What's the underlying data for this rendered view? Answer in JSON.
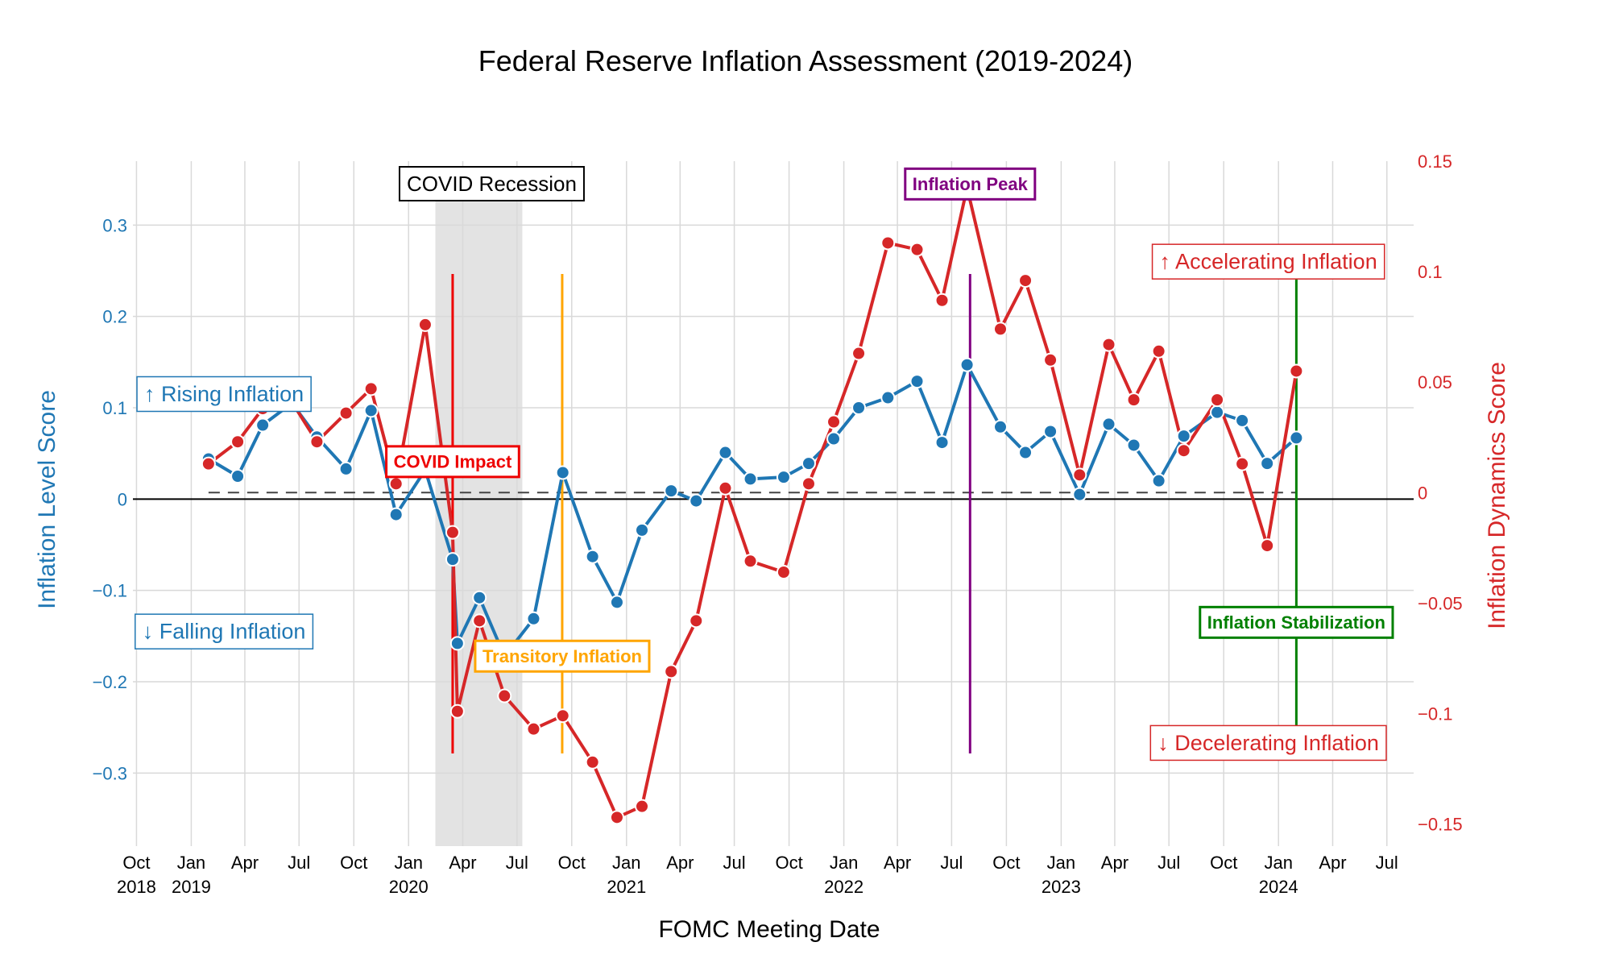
{
  "chart_data": {
    "type": "line",
    "title": "Federal Reserve Inflation Assessment (2019-2024)",
    "xlabel": "FOMC Meeting Date",
    "ylabel_left": "Inflation Level Score",
    "ylabel_right": "Inflation Dynamics Score",
    "xlim": [
      "2018-09-25",
      "2024-08-15"
    ],
    "ylim_left": [
      -0.38,
      0.37
    ],
    "ylim_right": [
      -0.16,
      0.15
    ],
    "x_ticks": [
      {
        "date": "2018-10-01",
        "month": "Oct",
        "year": "2018"
      },
      {
        "date": "2019-01-01",
        "month": "Jan",
        "year": "2019"
      },
      {
        "date": "2019-04-01",
        "month": "Apr",
        "year": ""
      },
      {
        "date": "2019-07-01",
        "month": "Jul",
        "year": ""
      },
      {
        "date": "2019-10-01",
        "month": "Oct",
        "year": ""
      },
      {
        "date": "2020-01-01",
        "month": "Jan",
        "year": "2020"
      },
      {
        "date": "2020-04-01",
        "month": "Apr",
        "year": ""
      },
      {
        "date": "2020-07-01",
        "month": "Jul",
        "year": ""
      },
      {
        "date": "2020-10-01",
        "month": "Oct",
        "year": ""
      },
      {
        "date": "2021-01-01",
        "month": "Jan",
        "year": "2021"
      },
      {
        "date": "2021-04-01",
        "month": "Apr",
        "year": ""
      },
      {
        "date": "2021-07-01",
        "month": "Jul",
        "year": ""
      },
      {
        "date": "2021-10-01",
        "month": "Oct",
        "year": ""
      },
      {
        "date": "2022-01-01",
        "month": "Jan",
        "year": "2022"
      },
      {
        "date": "2022-04-01",
        "month": "Apr",
        "year": ""
      },
      {
        "date": "2022-07-01",
        "month": "Jul",
        "year": ""
      },
      {
        "date": "2022-10-01",
        "month": "Oct",
        "year": ""
      },
      {
        "date": "2023-01-01",
        "month": "Jan",
        "year": "2023"
      },
      {
        "date": "2023-04-01",
        "month": "Apr",
        "year": ""
      },
      {
        "date": "2023-07-01",
        "month": "Jul",
        "year": ""
      },
      {
        "date": "2023-10-01",
        "month": "Oct",
        "year": ""
      },
      {
        "date": "2024-01-01",
        "month": "Jan",
        "year": "2024"
      },
      {
        "date": "2024-04-01",
        "month": "Apr",
        "year": ""
      },
      {
        "date": "2024-07-01",
        "month": "Jul",
        "year": ""
      }
    ],
    "y_ticks_left": [
      {
        "value": 0.3,
        "label": "0.3"
      },
      {
        "value": 0.2,
        "label": "0.2"
      },
      {
        "value": 0.1,
        "label": "0.1"
      },
      {
        "value": 0,
        "label": "0"
      },
      {
        "value": -0.1,
        "label": "−0.1"
      },
      {
        "value": -0.2,
        "label": "−0.2"
      },
      {
        "value": -0.3,
        "label": "−0.3"
      }
    ],
    "y_ticks_right": [
      {
        "value": 0.15,
        "label": "0.15"
      },
      {
        "value": 0.1,
        "label": "0.1"
      },
      {
        "value": 0.05,
        "label": "0.05"
      },
      {
        "value": 0,
        "label": "0"
      },
      {
        "value": -0.05,
        "label": "−0.05"
      },
      {
        "value": -0.1,
        "label": "−0.1"
      },
      {
        "value": -0.15,
        "label": "−0.15"
      }
    ],
    "series": [
      {
        "axis": "left",
        "color": "#1f77b4",
        "x": [
          "2019-01-30",
          "2019-03-20",
          "2019-05-01",
          "2019-06-19",
          "2019-07-31",
          "2019-09-18",
          "2019-10-30",
          "2019-12-11",
          "2020-01-29",
          "2020-03-15",
          "2020-03-23",
          "2020-04-29",
          "2020-06-10",
          "2020-07-29",
          "2020-09-16",
          "2020-11-05",
          "2020-12-16",
          "2021-01-27",
          "2021-03-17",
          "2021-04-28",
          "2021-06-16",
          "2021-07-28",
          "2021-09-22",
          "2021-11-03",
          "2021-12-15",
          "2022-01-26",
          "2022-03-16",
          "2022-05-04",
          "2022-06-15",
          "2022-07-27",
          "2022-09-21",
          "2022-11-02",
          "2022-12-14",
          "2023-02-01",
          "2023-03-22",
          "2023-05-03",
          "2023-06-14",
          "2023-07-26",
          "2023-09-20",
          "2023-11-01",
          "2023-12-13",
          "2024-01-31"
        ],
        "values": [
          0.044,
          0.025,
          0.081,
          0.105,
          0.068,
          0.033,
          0.097,
          -0.017,
          0.032,
          -0.066,
          -0.158,
          -0.108,
          -0.172,
          -0.131,
          0.029,
          -0.063,
          -0.113,
          -0.034,
          0.009,
          -0.002,
          0.051,
          0.022,
          0.024,
          0.039,
          0.066,
          0.1,
          0.111,
          0.129,
          0.062,
          0.147,
          0.079,
          0.051,
          0.074,
          0.005,
          0.082,
          0.059,
          0.02,
          0.069,
          0.095,
          0.086,
          0.039,
          0.067
        ]
      },
      {
        "axis": "right",
        "color": "#d62728",
        "x": [
          "2019-01-30",
          "2019-03-20",
          "2019-05-01",
          "2019-06-19",
          "2019-07-31",
          "2019-09-18",
          "2019-10-30",
          "2019-12-11",
          "2020-01-29",
          "2020-03-15",
          "2020-03-23",
          "2020-04-29",
          "2020-06-10",
          "2020-07-29",
          "2020-09-16",
          "2020-11-05",
          "2020-12-16",
          "2021-01-27",
          "2021-03-17",
          "2021-04-28",
          "2021-06-16",
          "2021-07-28",
          "2021-09-22",
          "2021-11-03",
          "2021-12-15",
          "2022-01-26",
          "2022-03-16",
          "2022-05-04",
          "2022-06-15",
          "2022-07-27",
          "2022-09-21",
          "2022-11-02",
          "2022-12-14",
          "2023-02-01",
          "2023-03-22",
          "2023-05-03",
          "2023-06-14",
          "2023-07-26",
          "2023-09-20",
          "2023-11-01",
          "2023-12-13",
          "2024-01-31"
        ],
        "values": [
          0.013,
          0.023,
          0.038,
          0.041,
          0.023,
          0.036,
          0.047,
          0.004,
          0.076,
          -0.018,
          -0.099,
          -0.058,
          -0.092,
          -0.107,
          -0.101,
          -0.122,
          -0.147,
          -0.142,
          -0.081,
          -0.058,
          0.002,
          -0.031,
          -0.036,
          0.004,
          0.032,
          0.063,
          0.113,
          0.11,
          0.087,
          0.138,
          0.074,
          0.096,
          0.06,
          0.008,
          0.067,
          0.042,
          0.064,
          0.019,
          0.042,
          0.013,
          -0.024,
          0.055
        ]
      }
    ],
    "zero_line": true,
    "recession_band": {
      "start": "2020-02-15",
      "end": "2020-07-10",
      "label": "COVID Recession"
    },
    "event_lines": [
      {
        "date": "2020-03-15",
        "label": "COVID Impact",
        "color": "#ee0000",
        "label_value": 0.041
      },
      {
        "date": "2020-09-15",
        "label": "Transitory Inflation",
        "color": "#ffa500",
        "label_value": -0.172
      },
      {
        "date": "2022-08-01",
        "label": "Inflation Peak",
        "color": "#800080",
        "label_value": 0.345
      },
      {
        "date": "2024-01-31",
        "label": "Inflation Stabilization",
        "color": "#008000",
        "label_value": -0.135
      }
    ],
    "annotations": [
      {
        "text": "↑ Rising Inflation",
        "color": "#1f77b4",
        "date": "2019-02-25",
        "value": 0.115
      },
      {
        "text": "↓ Falling Inflation",
        "color": "#1f77b4",
        "date": "2019-02-25",
        "value": -0.145
      },
      {
        "text": "↑ Accelerating Inflation",
        "color": "#d62728",
        "date": "2023-12-15",
        "value": 0.26
      },
      {
        "text": "↓ Decelerating Inflation",
        "color": "#d62728",
        "date": "2023-12-15",
        "value": -0.267
      }
    ],
    "grid": true
  }
}
